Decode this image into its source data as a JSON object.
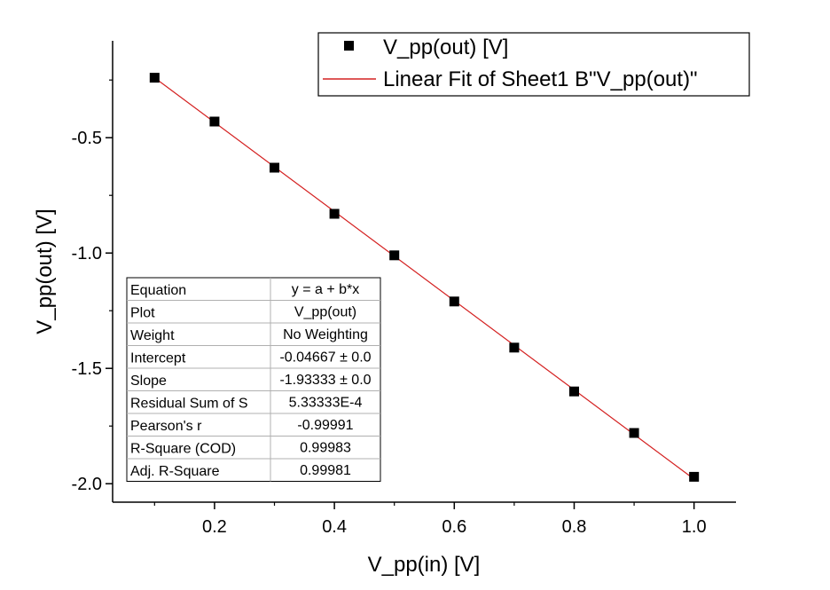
{
  "chart_data": {
    "type": "scatter",
    "xlabel": "V_pp(in) [V]",
    "ylabel": "V_pp(out) [V]",
    "xlim": [
      0.03,
      1.07
    ],
    "ylim": [
      -2.08,
      -0.08
    ],
    "xticks": [
      0.2,
      0.4,
      0.6,
      0.8,
      1.0
    ],
    "xtick_labels": [
      "0.2",
      "0.4",
      "0.6",
      "0.8",
      "1.0"
    ],
    "yticks": [
      -2.0,
      -1.5,
      -1.0,
      -0.5
    ],
    "ytick_labels": [
      "-2.0",
      "-1.5",
      "-1.0",
      "-0.5"
    ],
    "grid": false,
    "legend_position": "top-right",
    "series": [
      {
        "name": "V_pp(out) [V]",
        "kind": "points",
        "marker": "square",
        "color": "#000000",
        "x": [
          0.1,
          0.2,
          0.3,
          0.4,
          0.5,
          0.6,
          0.7,
          0.8,
          0.9,
          1.0
        ],
        "y": [
          -0.24,
          -0.43,
          -0.63,
          -0.83,
          -1.01,
          -1.21,
          -1.41,
          -1.6,
          -1.78,
          -1.97
        ]
      },
      {
        "name": "Linear Fit of Sheet1 B\"V_pp(out)\"",
        "kind": "line",
        "color": "#d42020",
        "x": [
          0.1,
          1.0
        ],
        "y": [
          -0.24,
          -1.98
        ]
      }
    ],
    "stats_table": [
      [
        "Equation",
        "y = a + b*x"
      ],
      [
        "Plot",
        "V_pp(out)"
      ],
      [
        "Weight",
        "No Weighting"
      ],
      [
        "Intercept",
        "-0.04667 ± 0.0"
      ],
      [
        "Slope",
        "-1.93333 ± 0.0"
      ],
      [
        "Residual Sum of S",
        "5.33333E-4"
      ],
      [
        "Pearson's r",
        "-0.99991"
      ],
      [
        "R-Square (COD)",
        "0.99983"
      ],
      [
        "Adj. R-Square",
        "0.99981"
      ]
    ]
  }
}
